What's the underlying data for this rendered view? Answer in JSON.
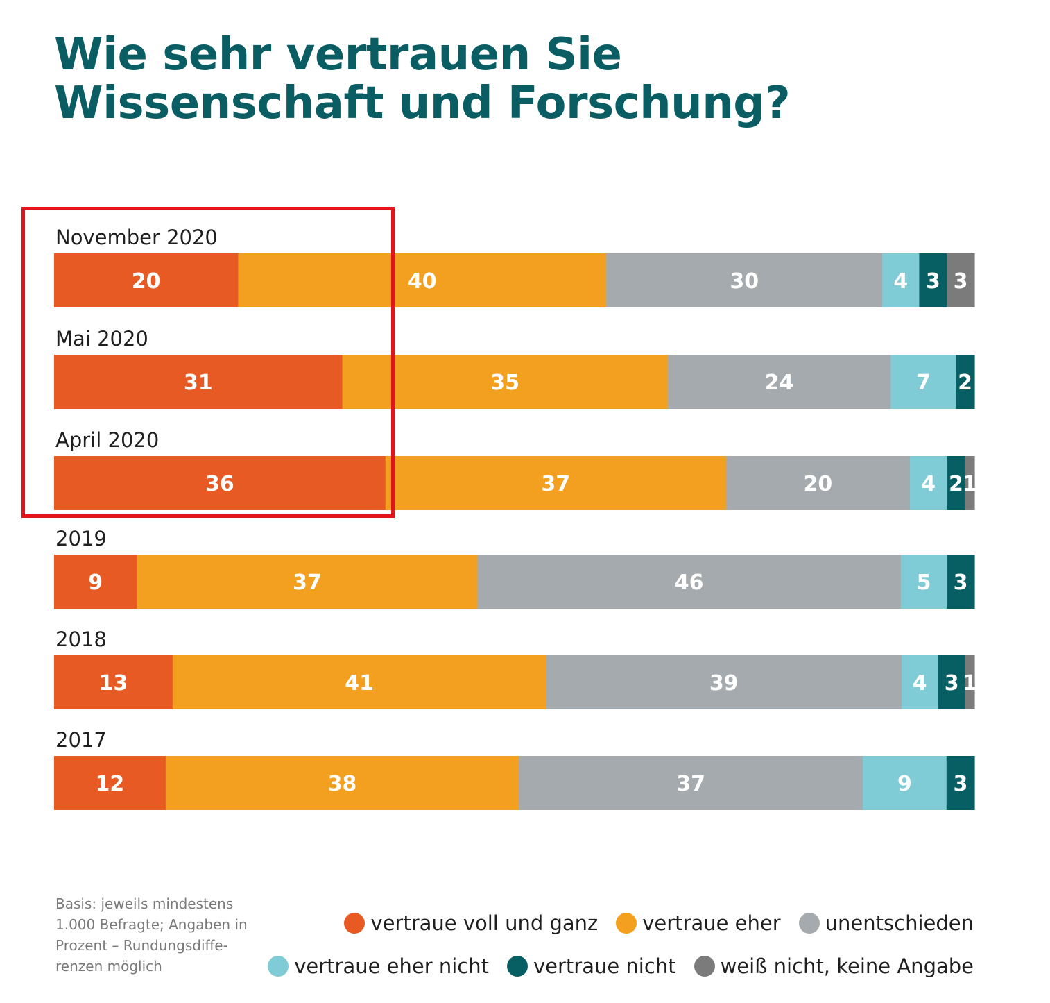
{
  "title_lines": [
    "Wie sehr vertrauen Sie",
    "Wissenschaft und Forschung?"
  ],
  "colors": {
    "title": "#0a5e63",
    "highlight_box": "#e3141b",
    "categories": [
      "#e85a24",
      "#f3a020",
      "#a5aaae",
      "#7fcbd6",
      "#085f63",
      "#7b7b7b"
    ]
  },
  "note_lines": [
    "Basis: jeweils mindestens",
    "1.000 Befragte; Angaben in",
    "Prozent – Rundungsdiffe-",
    "renzen möglich"
  ],
  "chart_data": {
    "type": "bar",
    "orientation": "horizontal",
    "stacked": true,
    "unit": "Prozent",
    "title": "Wie sehr vertrauen Sie Wissenschaft und Forschung?",
    "categories": [
      "November 2020",
      "Mai 2020",
      "April 2020",
      "2019",
      "2018",
      "2017"
    ],
    "series": [
      {
        "name": "vertraue voll und ganz",
        "values": [
          20,
          31,
          36,
          9,
          13,
          12
        ]
      },
      {
        "name": "vertraue eher",
        "values": [
          40,
          35,
          37,
          37,
          41,
          38
        ]
      },
      {
        "name": "unentschieden",
        "values": [
          30,
          24,
          20,
          46,
          39,
          37
        ]
      },
      {
        "name": "vertraue eher nicht",
        "values": [
          4,
          7,
          4,
          5,
          4,
          9
        ]
      },
      {
        "name": "vertraue nicht",
        "values": [
          3,
          2,
          2,
          3,
          3,
          3
        ]
      },
      {
        "name": "weiß nicht, keine Angabe",
        "values": [
          3,
          0,
          1,
          0,
          1,
          0
        ]
      }
    ],
    "legend_position": "bottom-right",
    "highlighted_categories": [
      "November 2020",
      "Mai 2020",
      "April 2020"
    ],
    "grid": false
  }
}
